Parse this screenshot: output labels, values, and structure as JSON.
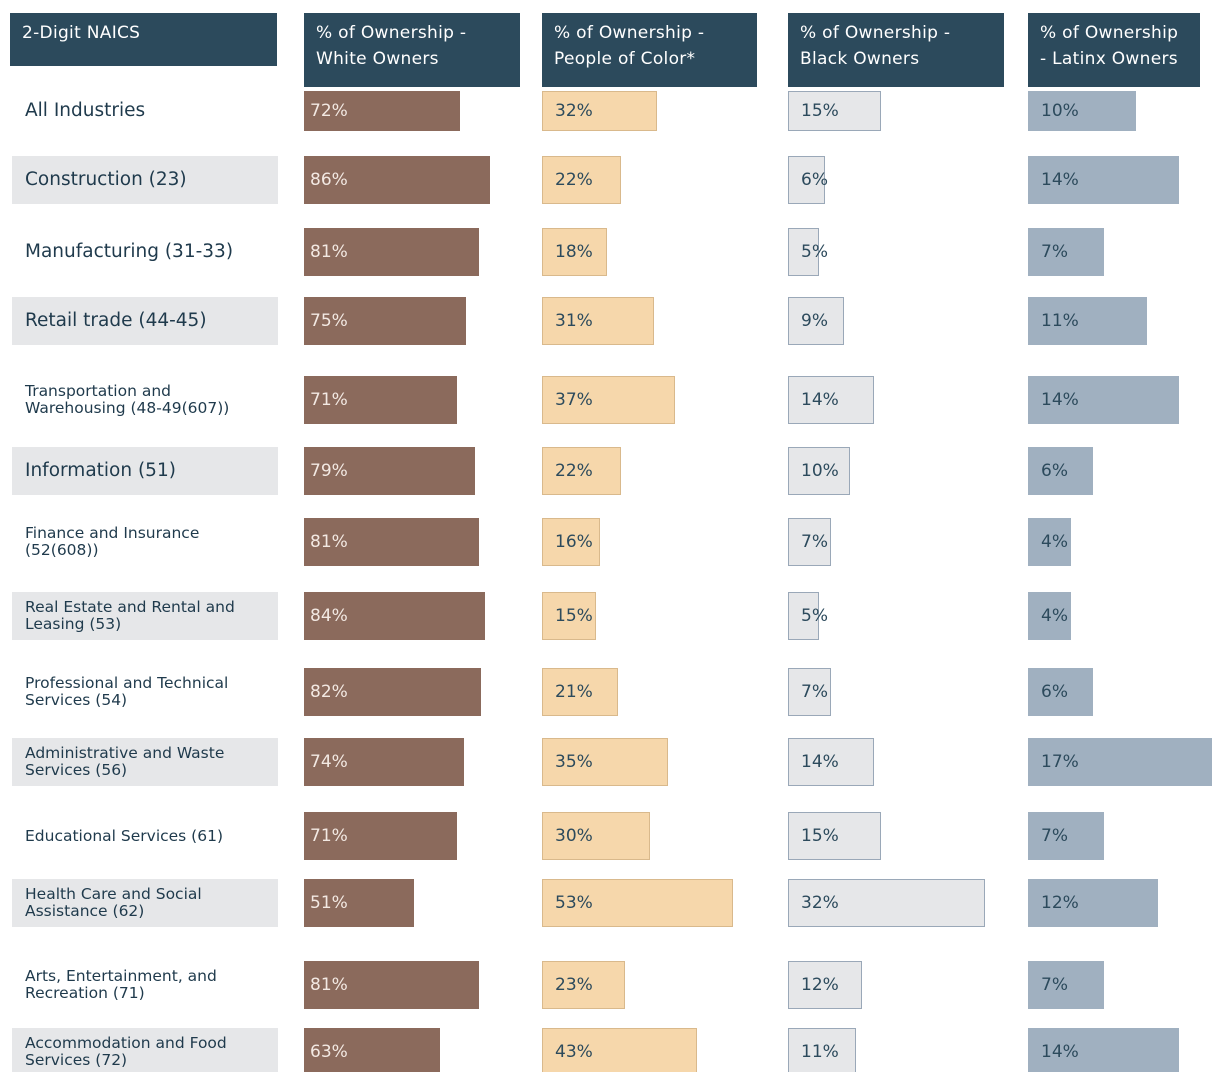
{
  "chart_data": {
    "type": "bar",
    "category_header": "2-Digit NAICS",
    "categories": [
      "All Industries",
      "Construction (23)",
      "Manufacturing (31-33)",
      "Retail trade (44-45)",
      "Transportation and Warehousing (48-49(607))",
      "Information (51)",
      "Finance and Insurance (52(608))",
      "Real Estate and Rental and Leasing (53)",
      "Professional and Technical Services (54)",
      "Administrative and Waste Services (56)",
      "Educational Services (61)",
      "Health Care and Social Assistance (62)",
      "Arts, Entertainment, and Recreation (71)",
      "Accommodation and Food Services (72)"
    ],
    "series": [
      {
        "name": "% of Ownership - White Owners",
        "color": "#8b6a5c",
        "xlim": [
          0,
          100
        ],
        "values": [
          72,
          86,
          81,
          75,
          71,
          79,
          81,
          84,
          82,
          74,
          71,
          51,
          81,
          63
        ],
        "value_labels": [
          "72%",
          "86%",
          "81%",
          "75%",
          "71%",
          "79%",
          "81%",
          "84%",
          "82%",
          "74%",
          "71%",
          "51%",
          "81%",
          "63%"
        ]
      },
      {
        "name": "% of Ownership - People of Color*",
        "color": "#f6d7ab",
        "xlim": [
          0,
          60
        ],
        "values": [
          32,
          22,
          18,
          31,
          37,
          22,
          16,
          15,
          21,
          35,
          30,
          53,
          23,
          43
        ],
        "value_labels": [
          "32%",
          "22%",
          "18%",
          "31%",
          "37%",
          "22%",
          "16%",
          "15%",
          "21%",
          "35%",
          "30%",
          "53%",
          "23%",
          "43%"
        ]
      },
      {
        "name": "% of Ownership - Black Owners",
        "color": "#e6e7e9",
        "xlim": [
          0,
          35
        ],
        "values": [
          15,
          6,
          5,
          9,
          14,
          10,
          7,
          5,
          7,
          14,
          15,
          32,
          12,
          11
        ],
        "value_labels": [
          "15%",
          "6%",
          "5%",
          "9%",
          "14%",
          "10%",
          "7%",
          "5%",
          "7%",
          "14%",
          "15%",
          "32%",
          "12%",
          "11%"
        ]
      },
      {
        "name": "% of Ownership - Latinx Owners",
        "color": "#a0b0c0",
        "xlim": [
          0,
          20
        ],
        "values": [
          10,
          14,
          7,
          11,
          14,
          6,
          4,
          4,
          6,
          17,
          7,
          12,
          7,
          14
        ],
        "value_labels": [
          "10%",
          "14%",
          "7%",
          "11%",
          "14%",
          "6%",
          "4%",
          "4%",
          "6%",
          "17%",
          "7%",
          "12%",
          "7%",
          "14%"
        ]
      }
    ]
  }
}
